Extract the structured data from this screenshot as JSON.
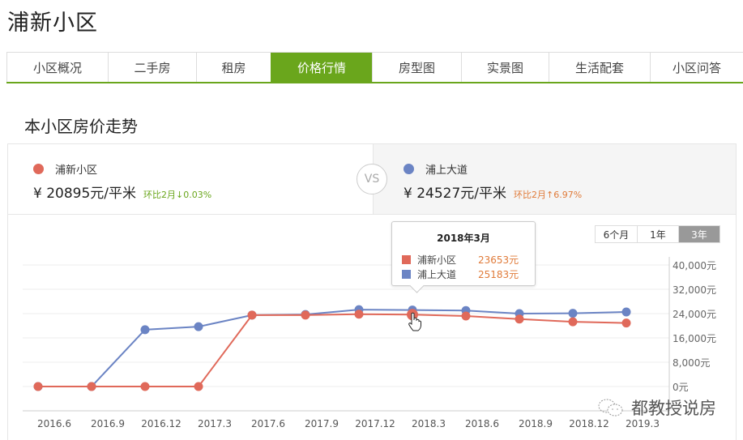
{
  "header": {
    "title": "浦新小区"
  },
  "tabs": [
    {
      "label": "小区概况",
      "active": false,
      "width": 125
    },
    {
      "label": "二手房",
      "active": false,
      "width": 109
    },
    {
      "label": "租房",
      "active": false,
      "width": 92
    },
    {
      "label": "价格行情",
      "active": true,
      "width": 125
    },
    {
      "label": "房型图",
      "active": false,
      "width": 110
    },
    {
      "label": "实景图",
      "active": false,
      "width": 108
    },
    {
      "label": "生活配套",
      "active": false,
      "width": 125
    },
    {
      "label": "小区问答",
      "active": false,
      "width": 115
    }
  ],
  "section": {
    "title": "本小区房价走势"
  },
  "compare": {
    "vs_label": "VS",
    "left": {
      "name": "浦新小区",
      "price": "¥ 20895元/平米",
      "change": "环比2月↓0.03%",
      "color": "#e0695a",
      "change_color": "#6aa61c"
    },
    "right": {
      "name": "浦上大道",
      "price": "¥ 24527元/平米",
      "change": "环比2月↑6.97%",
      "color": "#6b84c4",
      "change_color": "#e07b3a"
    }
  },
  "range_buttons": [
    {
      "label": "6个月",
      "active": false
    },
    {
      "label": "1年",
      "active": false
    },
    {
      "label": "3年",
      "active": true
    }
  ],
  "tooltip": {
    "title": "2018年3月",
    "rows": [
      {
        "name": "浦新小区",
        "value": "23653元",
        "color": "#e0695a"
      },
      {
        "name": "浦上大道",
        "value": "25183元",
        "color": "#6b84c4"
      }
    ]
  },
  "watermark": {
    "text": "都教授说房"
  },
  "chart_data": {
    "type": "line",
    "title": "本小区房价走势",
    "xlabel": "",
    "ylabel": "",
    "categories": [
      "2016.6",
      "2016.9",
      "2016.12",
      "2017.3",
      "2017.6",
      "2017.9",
      "2017.12",
      "2018.3",
      "2018.6",
      "2018.9",
      "2018.12",
      "2019.3"
    ],
    "y_ticks": [
      "0元",
      "8,000元",
      "16,000元",
      "24,000元",
      "32,000元",
      "40,000元"
    ],
    "y_tick_values": [
      0,
      8000,
      16000,
      24000,
      32000,
      40000
    ],
    "ylim": [
      0,
      40000
    ],
    "grid": true,
    "y_axis_position": "right",
    "series": [
      {
        "name": "浦新小区",
        "color": "#e0695a",
        "values": [
          0,
          0,
          0,
          0,
          23500,
          23500,
          23800,
          23653,
          23200,
          22200,
          21300,
          20895
        ]
      },
      {
        "name": "浦上大道",
        "color": "#6b84c4",
        "values": [
          0,
          0,
          18700,
          19700,
          23500,
          23700,
          25300,
          25183,
          25000,
          24000,
          24100,
          24527
        ]
      }
    ]
  }
}
